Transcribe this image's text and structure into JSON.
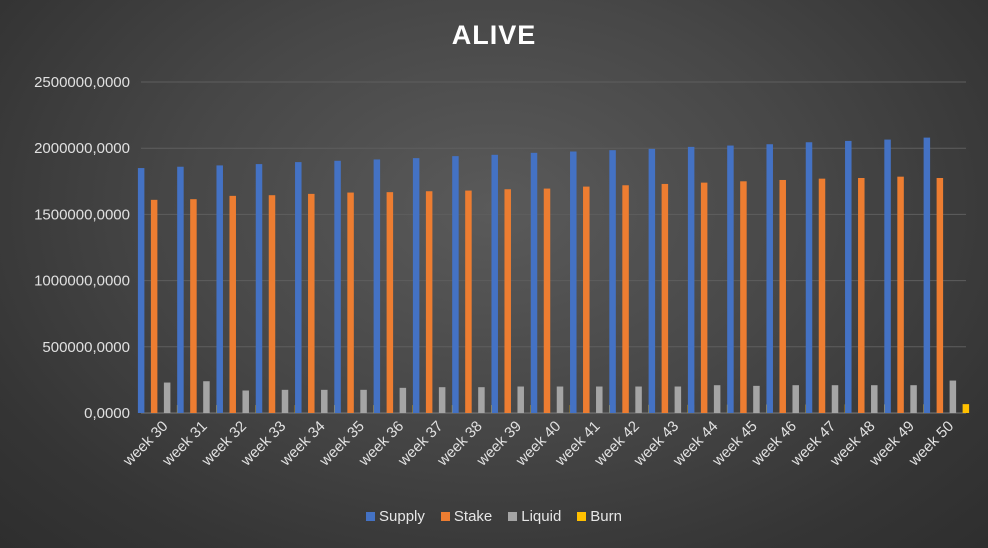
{
  "chart_data": {
    "type": "bar",
    "title": "ALIVE",
    "xlabel": "",
    "ylabel": "",
    "ylim": [
      0,
      2500000
    ],
    "yticks": [
      "0,0000",
      "500000,0000",
      "1000000,0000",
      "1500000,0000",
      "2000000,0000",
      "2500000,0000"
    ],
    "categories": [
      "week 30",
      "week 31",
      "week 32",
      "week 33",
      "week 34",
      "week 35",
      "week 36",
      "week 37",
      "week 38",
      "week 39",
      "week 40",
      "week 41",
      "week 42",
      "week 43",
      "week 44",
      "week 45",
      "week 46",
      "week 47",
      "week 48",
      "week 49",
      "week 50"
    ],
    "series": [
      {
        "name": "Supply",
        "color": "#4472c4",
        "values": [
          1850000,
          1860000,
          1870000,
          1880000,
          1895000,
          1905000,
          1915000,
          1925000,
          1940000,
          1950000,
          1965000,
          1975000,
          1985000,
          1995000,
          2010000,
          2020000,
          2030000,
          2045000,
          2055000,
          2065000,
          2080000
        ]
      },
      {
        "name": "Stake",
        "color": "#ed7d31",
        "values": [
          1610000,
          1615000,
          1640000,
          1645000,
          1655000,
          1665000,
          1668000,
          1675000,
          1680000,
          1690000,
          1695000,
          1710000,
          1720000,
          1730000,
          1740000,
          1750000,
          1760000,
          1770000,
          1775000,
          1785000,
          1775000
        ]
      },
      {
        "name": "Liquid",
        "color": "#a5a5a5",
        "values": [
          230000,
          240000,
          170000,
          175000,
          175000,
          175000,
          190000,
          195000,
          195000,
          200000,
          200000,
          200000,
          200000,
          200000,
          210000,
          205000,
          210000,
          210000,
          210000,
          210000,
          245000
        ]
      },
      {
        "name": "Burn",
        "color": "#ffc000",
        "values": [
          60000,
          60000,
          60000,
          60000,
          60000,
          60000,
          60000,
          60000,
          60000,
          60000,
          60000,
          60000,
          62000,
          62000,
          63000,
          64000,
          64000,
          65000,
          65000,
          66000,
          67000
        ]
      }
    ],
    "grid": true,
    "legend": "bottom"
  }
}
